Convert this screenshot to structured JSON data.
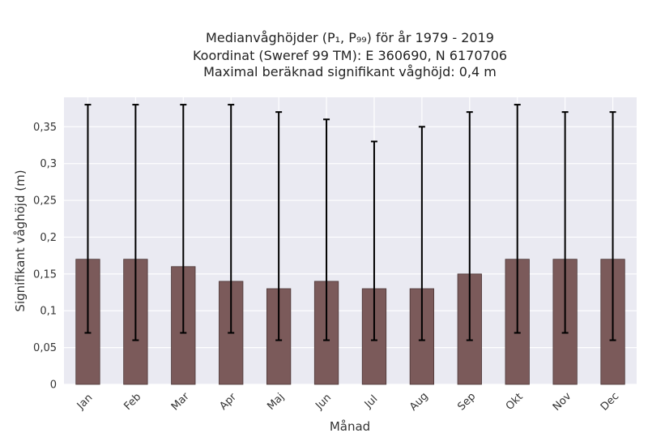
{
  "chart_data": {
    "type": "bar",
    "title_lines": [
      "Medianvåghöjder (P₁, P₉₉) för år 1979 - 2019",
      "Koordinat (Sweref 99 TM): E 360690, N 6170706",
      "Maximal beräknad signifikant våghöjd: 0,4 m"
    ],
    "xlabel": "Månad",
    "ylabel": "Signifikant våghöjd (m)",
    "categories": [
      "Jan",
      "Feb",
      "Mar",
      "Apr",
      "Maj",
      "Jun",
      "Jul",
      "Aug",
      "Sep",
      "Okt",
      "Nov",
      "Dec"
    ],
    "values": [
      0.17,
      0.17,
      0.16,
      0.14,
      0.13,
      0.14,
      0.13,
      0.13,
      0.15,
      0.17,
      0.17,
      0.17
    ],
    "err_low": [
      0.07,
      0.06,
      0.07,
      0.07,
      0.06,
      0.06,
      0.06,
      0.06,
      0.06,
      0.07,
      0.07,
      0.06
    ],
    "err_high": [
      0.38,
      0.38,
      0.38,
      0.38,
      0.37,
      0.36,
      0.33,
      0.35,
      0.37,
      0.38,
      0.37,
      0.37
    ],
    "ylim": [
      0,
      0.39
    ],
    "yticks": [
      0,
      0.05,
      0.1,
      0.15,
      0.2,
      0.25,
      0.3,
      0.35
    ],
    "ytick_labels": [
      "0",
      "0,05",
      "0,1",
      "0,15",
      "0,2",
      "0,25",
      "0,3",
      "0,35"
    ],
    "grid": true,
    "colors": {
      "bar": "#7b5a5a",
      "bar_edge": "#4a3535",
      "plot_bg": "#eaeaf2",
      "grid": "#ffffff",
      "error": "#000000"
    }
  }
}
